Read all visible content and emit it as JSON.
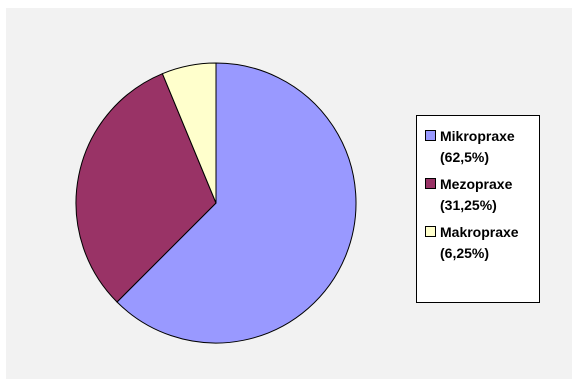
{
  "chart_data": {
    "type": "pie",
    "categories": [
      "Mikropraxe",
      "Mezopraxe",
      "Makropraxe"
    ],
    "values": [
      62.5,
      31.25,
      6.25
    ],
    "colors": [
      "#9999ff",
      "#993366",
      "#ffffcc"
    ],
    "title": "",
    "legend_position": "right",
    "legend": {
      "items": [
        {
          "label": "Mikropraxe\n(62,5%)"
        },
        {
          "label": "Mezopraxe\n(31,25%)"
        },
        {
          "label": "Makropraxe\n(6,25%)"
        }
      ]
    }
  }
}
